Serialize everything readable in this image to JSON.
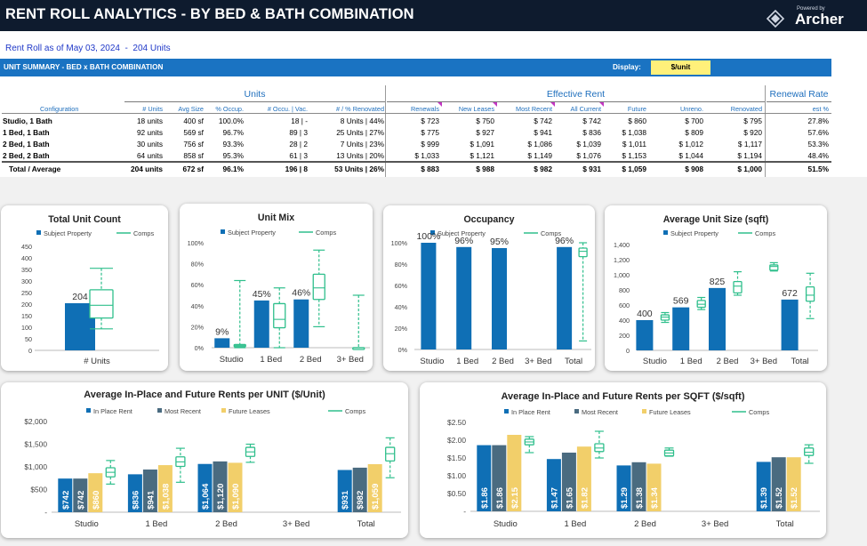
{
  "header": {
    "title": "RENT ROLL ANALYTICS - BY BED & BATH COMBINATION",
    "logo_powered": "Powered by",
    "logo_brand": "Archer"
  },
  "as_of": "Rent Roll as of May 03, 2024  -  204 Units",
  "summary_bar": {
    "title": "UNIT SUMMARY - BED x BATH COMBINATION",
    "display_label": "Display:",
    "display_value": "$/unit"
  },
  "table": {
    "groups": {
      "units": "Units",
      "effective_rent": "Effective Rent",
      "renewal_rate": "Renewal Rate"
    },
    "columns": [
      "Configuration",
      "# Units",
      "Avg Size",
      "% Occup.",
      "# Occu. | Vac.",
      "# / % Renovated",
      "Renewals",
      "New Leases",
      "Most Recent",
      "All Current",
      "Future",
      "Unreno.",
      "Renovated",
      "est %"
    ],
    "rows": [
      [
        "Studio, 1 Bath",
        "18 units",
        "400 sf",
        "100.0%",
        "18 | -",
        "8 Units | 44%",
        "$ 723",
        "$ 750",
        "$ 742",
        "$ 742",
        "$ 860",
        "$ 700",
        "$ 795",
        "27.8%"
      ],
      [
        "1 Bed, 1 Bath",
        "92 units",
        "569 sf",
        "96.7%",
        "89 | 3",
        "25 Units | 27%",
        "$ 775",
        "$ 927",
        "$ 941",
        "$ 836",
        "$ 1,038",
        "$ 809",
        "$ 920",
        "57.6%"
      ],
      [
        "2 Bed, 1 Bath",
        "30 units",
        "756 sf",
        "93.3%",
        "28 | 2",
        "7 Units | 23%",
        "$ 999",
        "$ 1,091",
        "$ 1,086",
        "$ 1,039",
        "$ 1,011",
        "$ 1,012",
        "$ 1,117",
        "53.3%"
      ],
      [
        "2 Bed, 2 Bath",
        "64 units",
        "858 sf",
        "95.3%",
        "61 | 3",
        "13 Units | 20%",
        "$ 1,033",
        "$ 1,121",
        "$ 1,149",
        "$ 1,076",
        "$ 1,153",
        "$ 1,044",
        "$ 1,194",
        "48.4%"
      ],
      [
        "Total / Average",
        "204 units",
        "672 sf",
        "96.1%",
        "196 | 8",
        "53 Units | 26%",
        "$ 883",
        "$ 988",
        "$ 982",
        "$ 931",
        "$ 1,059",
        "$ 908",
        "$ 1,000",
        "51.5%"
      ]
    ]
  },
  "colors": {
    "header_bg": "#0e1b2e",
    "accent_blue": "#1a73c2",
    "subject": "#0f6fb5",
    "recent": "#4a6b80",
    "future": "#f2cf6a",
    "comps": "#2fbf8c",
    "display_bg": "#fff07a"
  },
  "chart_data": [
    {
      "type": "bar",
      "title": "Total Unit Count",
      "legend": [
        "Subject Property",
        "Comps"
      ],
      "categories": [
        "# Units"
      ],
      "series": [
        {
          "name": "Subject Property",
          "values": [
            204
          ]
        }
      ],
      "data_labels": [
        "204"
      ],
      "comps": [
        {
          "min": 93,
          "q1": 140,
          "q3": 262,
          "max": 355,
          "median": 195
        }
      ],
      "yticks": [
        "0",
        "50",
        "100",
        "150",
        "200",
        "250",
        "300",
        "350",
        "400",
        "450"
      ],
      "ylim": [
        0,
        450
      ]
    },
    {
      "type": "bar",
      "title": "Unit Mix",
      "legend": [
        "Subject Property",
        "Comps"
      ],
      "categories": [
        "Studio",
        "1 Bed",
        "2 Bed",
        "3+ Bed"
      ],
      "series": [
        {
          "name": "Subject Property",
          "values": [
            9,
            45,
            46,
            0
          ]
        }
      ],
      "data_labels": [
        "9%",
        "45%",
        "46%",
        ""
      ],
      "comps": [
        {
          "min": 0,
          "q1": 1,
          "q3": 3,
          "max": 64,
          "median": 2
        },
        {
          "min": 0,
          "q1": 19,
          "q3": 42,
          "max": 57,
          "median": 27
        },
        {
          "min": 20,
          "q1": 46,
          "q3": 70,
          "max": 93,
          "median": 57
        },
        {
          "min": 0,
          "q1": 0,
          "q3": 0,
          "max": 50,
          "median": 0
        }
      ],
      "yticks": [
        "0%",
        "20%",
        "40%",
        "60%",
        "80%",
        "100%"
      ],
      "ylim": [
        0,
        100
      ]
    },
    {
      "type": "bar",
      "title": "Occupancy",
      "legend": [
        "Subject Property",
        "Comps"
      ],
      "categories": [
        "Studio",
        "1 Bed",
        "2 Bed",
        "3+ Bed",
        "Total"
      ],
      "series": [
        {
          "name": "Subject Property",
          "values": [
            100,
            96,
            95,
            0,
            96
          ]
        }
      ],
      "data_labels": [
        "100%",
        "96%",
        "95%",
        "",
        "96%"
      ],
      "comps": [
        null,
        null,
        null,
        null,
        {
          "min": 8,
          "q1": 87,
          "q3": 95,
          "max": 100,
          "median": 92
        }
      ],
      "yticks": [
        "0%",
        "20%",
        "40%",
        "60%",
        "80%",
        "100%"
      ],
      "ylim": [
        0,
        100
      ]
    },
    {
      "type": "bar",
      "title": "Average Unit Size (sqft)",
      "legend": [
        "Subject Property",
        "Comps"
      ],
      "categories": [
        "Studio",
        "1 Bed",
        "2 Bed",
        "3+ Bed",
        "Total"
      ],
      "series": [
        {
          "name": "Subject Property",
          "values": [
            400,
            569,
            825,
            0,
            672
          ]
        }
      ],
      "data_labels": [
        "400",
        "569",
        "825",
        "",
        "672"
      ],
      "comps": [
        {
          "min": 370,
          "q1": 400,
          "q3": 470,
          "max": 500,
          "median": 440
        },
        {
          "min": 540,
          "q1": 570,
          "q3": 660,
          "max": 700,
          "median": 610
        },
        {
          "min": 730,
          "q1": 760,
          "q3": 910,
          "max": 1040,
          "median": 850
        },
        {
          "min": 1050,
          "q1": 1060,
          "q3": 1130,
          "max": 1160,
          "median": 1110
        },
        {
          "min": 420,
          "q1": 650,
          "q3": 840,
          "max": 1020,
          "median": 730
        }
      ],
      "yticks": [
        "0",
        "200",
        "400",
        "600",
        "800",
        "1,000",
        "1,200",
        "1,400"
      ],
      "ylim": [
        0,
        1400
      ]
    },
    {
      "type": "bar",
      "title": "Average In-Place and Future Rents per UNIT ($/Unit)",
      "legend": [
        "In Place Rent",
        "Most Recent",
        "Future Leases",
        "Comps"
      ],
      "categories": [
        "Studio",
        "1 Bed",
        "2 Bed",
        "3+ Bed",
        "Total"
      ],
      "series": [
        {
          "name": "In Place Rent",
          "values": [
            742,
            836,
            1064,
            0,
            931
          ]
        },
        {
          "name": "Most Recent",
          "values": [
            742,
            941,
            1120,
            0,
            982
          ]
        },
        {
          "name": "Future Leases",
          "values": [
            860,
            1038,
            1090,
            0,
            1059
          ]
        }
      ],
      "data_labels": [
        [
          "$742",
          "$836",
          "$1,064",
          "",
          "$931"
        ],
        [
          "$742",
          "$941",
          "$1,120",
          "",
          "$982"
        ],
        [
          "$860",
          "$1,038",
          "$1,090",
          "",
          "$1,059"
        ]
      ],
      "comps": [
        {
          "min": 620,
          "q1": 780,
          "q3": 980,
          "max": 1140,
          "median": 880
        },
        {
          "min": 660,
          "q1": 1010,
          "q3": 1220,
          "max": 1410,
          "median": 1110
        },
        {
          "min": 1100,
          "q1": 1230,
          "q3": 1430,
          "max": 1500,
          "median": 1330
        },
        null,
        {
          "min": 760,
          "q1": 1130,
          "q3": 1430,
          "max": 1640,
          "median": 1290
        }
      ],
      "yticks": [
        "-",
        "$500",
        "$1,000",
        "$1,500",
        "$2,000"
      ],
      "ylim": [
        0,
        2000
      ]
    },
    {
      "type": "bar",
      "title": "Average In-Place and Future Rents per SQFT ($/sqft)",
      "legend": [
        "In Place Rent",
        "Most Recent",
        "Future Leases",
        "Comps"
      ],
      "categories": [
        "Studio",
        "1 Bed",
        "2 Bed",
        "3+ Bed",
        "Total"
      ],
      "series": [
        {
          "name": "In Place Rent",
          "values": [
            1.86,
            1.47,
            1.29,
            0,
            1.39
          ]
        },
        {
          "name": "Most Recent",
          "values": [
            1.86,
            1.65,
            1.38,
            0,
            1.52
          ]
        },
        {
          "name": "Future Leases",
          "values": [
            2.15,
            1.82,
            1.34,
            0,
            1.52
          ]
        }
      ],
      "data_labels": [
        [
          "$1.86",
          "$1.47",
          "$1.29",
          "",
          "$1.39"
        ],
        [
          "$1.86",
          "$1.65",
          "$1.38",
          "",
          "$1.52"
        ],
        [
          "$2.15",
          "$1.82",
          "$1.34",
          "",
          "$1.52"
        ]
      ],
      "comps": [
        {
          "min": 1.65,
          "q1": 1.87,
          "q3": 2.03,
          "max": 2.1,
          "median": 1.95
        },
        {
          "min": 1.5,
          "q1": 1.68,
          "q3": 1.9,
          "max": 2.25,
          "median": 1.78
        },
        {
          "min": 1.55,
          "q1": 1.56,
          "q3": 1.72,
          "max": 1.78,
          "median": 1.64
        },
        null,
        {
          "min": 1.35,
          "q1": 1.57,
          "q3": 1.78,
          "max": 1.87,
          "median": 1.66
        }
      ],
      "yticks": [
        "-",
        "$0.50",
        "$1.00",
        "$1.50",
        "$2.00",
        "$2.50"
      ],
      "ylim": [
        0,
        2.5
      ]
    }
  ]
}
